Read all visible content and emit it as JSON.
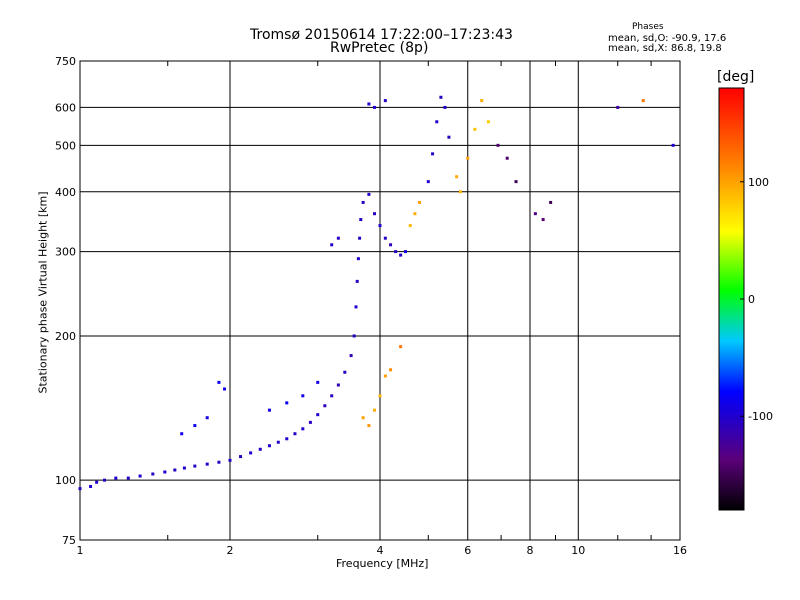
{
  "title_line1": "Tromsø 20150614 17:22:00–17:23:43",
  "title_line2": "RwPretec (8p)",
  "phases": {
    "header": "Phases",
    "o_line": "mean, sd,O: -90.9, 17.6",
    "x_line": "mean, sd,X:  86.8, 19.8"
  },
  "colorbar": {
    "label": "[deg]",
    "ticks": [
      {
        "value": 100,
        "label": "100"
      },
      {
        "value": 0,
        "label": "0"
      },
      {
        "value": -100,
        "label": "-100"
      }
    ],
    "range": [
      -180,
      180
    ]
  },
  "chart_data": {
    "type": "scatter",
    "xlabel": "Frequency [MHz]",
    "ylabel": "Stationary phase Virtual Height [km]",
    "xscale": "log",
    "yscale": "log",
    "xlim": [
      1,
      16
    ],
    "ylim": [
      75,
      750
    ],
    "xticks": [
      {
        "value": 1,
        "label": "1"
      },
      {
        "value": 2,
        "label": "2"
      },
      {
        "value": 4,
        "label": "4"
      },
      {
        "value": 6,
        "label": "6"
      },
      {
        "value": 8,
        "label": "8"
      },
      {
        "value": 10,
        "label": "10"
      },
      {
        "value": 16,
        "label": "16"
      }
    ],
    "yticks": [
      {
        "value": 75,
        "label": "75"
      },
      {
        "value": 100,
        "label": "100"
      },
      {
        "value": 200,
        "label": "200"
      },
      {
        "value": 300,
        "label": "300"
      },
      {
        "value": 400,
        "label": "400"
      },
      {
        "value": 500,
        "label": "500"
      },
      {
        "value": 600,
        "label": "600"
      },
      {
        "value": 750,
        "label": "750"
      }
    ],
    "grid": true,
    "color_meaning": "phase in degrees",
    "points": [
      [
        1.0,
        96,
        -105
      ],
      [
        1.05,
        97,
        -100
      ],
      [
        1.08,
        99,
        -100
      ],
      [
        1.12,
        100,
        -105
      ],
      [
        1.18,
        101,
        -100
      ],
      [
        1.25,
        101,
        -105
      ],
      [
        1.32,
        102,
        -100
      ],
      [
        1.4,
        103,
        -105
      ],
      [
        1.48,
        104,
        -100
      ],
      [
        1.55,
        105,
        -105
      ],
      [
        1.62,
        106,
        -100
      ],
      [
        1.7,
        107,
        -105
      ],
      [
        1.8,
        108,
        -100
      ],
      [
        1.9,
        109,
        -105
      ],
      [
        2.0,
        110,
        -100
      ],
      [
        2.1,
        112,
        -105
      ],
      [
        2.2,
        114,
        -100
      ],
      [
        2.3,
        116,
        -105
      ],
      [
        2.4,
        118,
        -100
      ],
      [
        2.5,
        120,
        -105
      ],
      [
        2.6,
        122,
        -100
      ],
      [
        2.7,
        125,
        -105
      ],
      [
        2.8,
        128,
        -100
      ],
      [
        2.9,
        132,
        -105
      ],
      [
        3.0,
        137,
        -100
      ],
      [
        3.1,
        143,
        -110
      ],
      [
        3.2,
        150,
        -105
      ],
      [
        3.3,
        158,
        -110
      ],
      [
        3.4,
        168,
        -105
      ],
      [
        3.5,
        182,
        -110
      ],
      [
        3.55,
        200,
        -105
      ],
      [
        3.58,
        230,
        -100
      ],
      [
        3.6,
        260,
        -105
      ],
      [
        3.62,
        290,
        -100
      ],
      [
        3.64,
        320,
        -105
      ],
      [
        3.66,
        350,
        -100
      ],
      [
        3.7,
        380,
        -105
      ],
      [
        3.8,
        395,
        -100
      ],
      [
        3.9,
        360,
        -105
      ],
      [
        4.0,
        340,
        -100
      ],
      [
        4.1,
        320,
        -105
      ],
      [
        4.2,
        310,
        -110
      ],
      [
        4.3,
        300,
        -105
      ],
      [
        4.4,
        295,
        -100
      ],
      [
        4.5,
        300,
        -95
      ],
      [
        4.6,
        340,
        90
      ],
      [
        4.7,
        360,
        95
      ],
      [
        4.8,
        380,
        100
      ],
      [
        5.0,
        420,
        -100
      ],
      [
        5.1,
        480,
        -105
      ],
      [
        5.2,
        560,
        -100
      ],
      [
        5.3,
        630,
        -105
      ],
      [
        5.4,
        600,
        -100
      ],
      [
        5.5,
        520,
        -105
      ],
      [
        5.7,
        430,
        95
      ],
      [
        5.8,
        400,
        90
      ],
      [
        6.0,
        470,
        100
      ],
      [
        6.2,
        540,
        85
      ],
      [
        6.4,
        620,
        95
      ],
      [
        6.6,
        560,
        80
      ],
      [
        6.9,
        500,
        -140
      ],
      [
        7.2,
        470,
        -145
      ],
      [
        7.5,
        420,
        -150
      ],
      [
        1.6,
        125,
        -90
      ],
      [
        1.7,
        130,
        -85
      ],
      [
        1.8,
        135,
        -90
      ],
      [
        1.9,
        160,
        -85
      ],
      [
        1.95,
        155,
        -90
      ],
      [
        2.4,
        140,
        -90
      ],
      [
        2.6,
        145,
        -85
      ],
      [
        2.8,
        150,
        -90
      ],
      [
        3.0,
        160,
        -90
      ],
      [
        3.2,
        310,
        -100
      ],
      [
        3.3,
        320,
        -105
      ],
      [
        3.8,
        610,
        -100
      ],
      [
        3.9,
        600,
        -100
      ],
      [
        4.1,
        620,
        -105
      ],
      [
        3.7,
        135,
        100
      ],
      [
        3.8,
        130,
        105
      ],
      [
        3.9,
        140,
        95
      ],
      [
        4.0,
        150,
        90
      ],
      [
        4.1,
        165,
        100
      ],
      [
        4.2,
        170,
        110
      ],
      [
        4.4,
        190,
        120
      ],
      [
        8.2,
        360,
        -130
      ],
      [
        8.5,
        350,
        -140
      ],
      [
        8.8,
        380,
        -150
      ],
      [
        12.0,
        600,
        -120
      ],
      [
        13.5,
        620,
        120
      ],
      [
        15.5,
        500,
        -100
      ]
    ]
  }
}
